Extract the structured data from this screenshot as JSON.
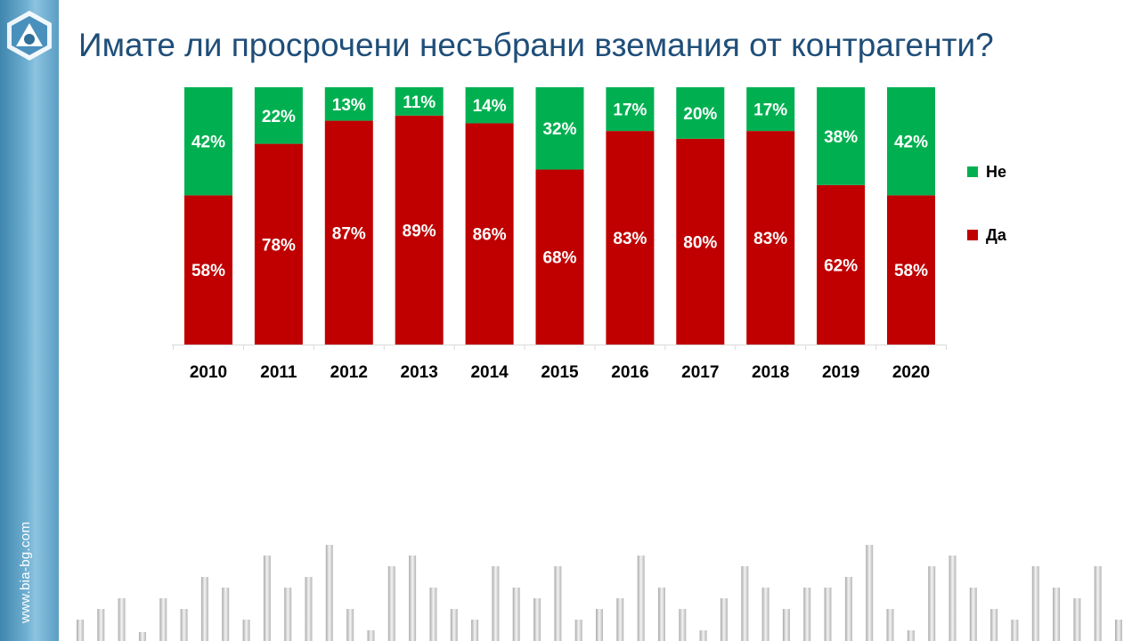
{
  "slide": {
    "title": "Имате ли просрочени несъбрани вземания от контрагенти?",
    "site_url": "www.bia-bg.com"
  },
  "chart_data": {
    "type": "bar",
    "stacked": true,
    "categories": [
      "2010",
      "2011",
      "2012",
      "2013",
      "2014",
      "2015",
      "2016",
      "2017",
      "2018",
      "2019",
      "2020"
    ],
    "series": [
      {
        "name": "Да",
        "color": "#c00000",
        "values": [
          58,
          78,
          87,
          89,
          86,
          68,
          83,
          80,
          83,
          62,
          58
        ]
      },
      {
        "name": "Не",
        "color": "#00b050",
        "values": [
          42,
          22,
          13,
          11,
          14,
          32,
          17,
          20,
          17,
          38,
          42
        ]
      }
    ],
    "value_suffix": "%",
    "ylim": [
      0,
      100
    ],
    "legend_position": "right",
    "grid": false
  },
  "legend": {
    "items": [
      {
        "label": "Не",
        "color": "#00b050"
      },
      {
        "label": "Да",
        "color": "#c00000"
      }
    ]
  }
}
